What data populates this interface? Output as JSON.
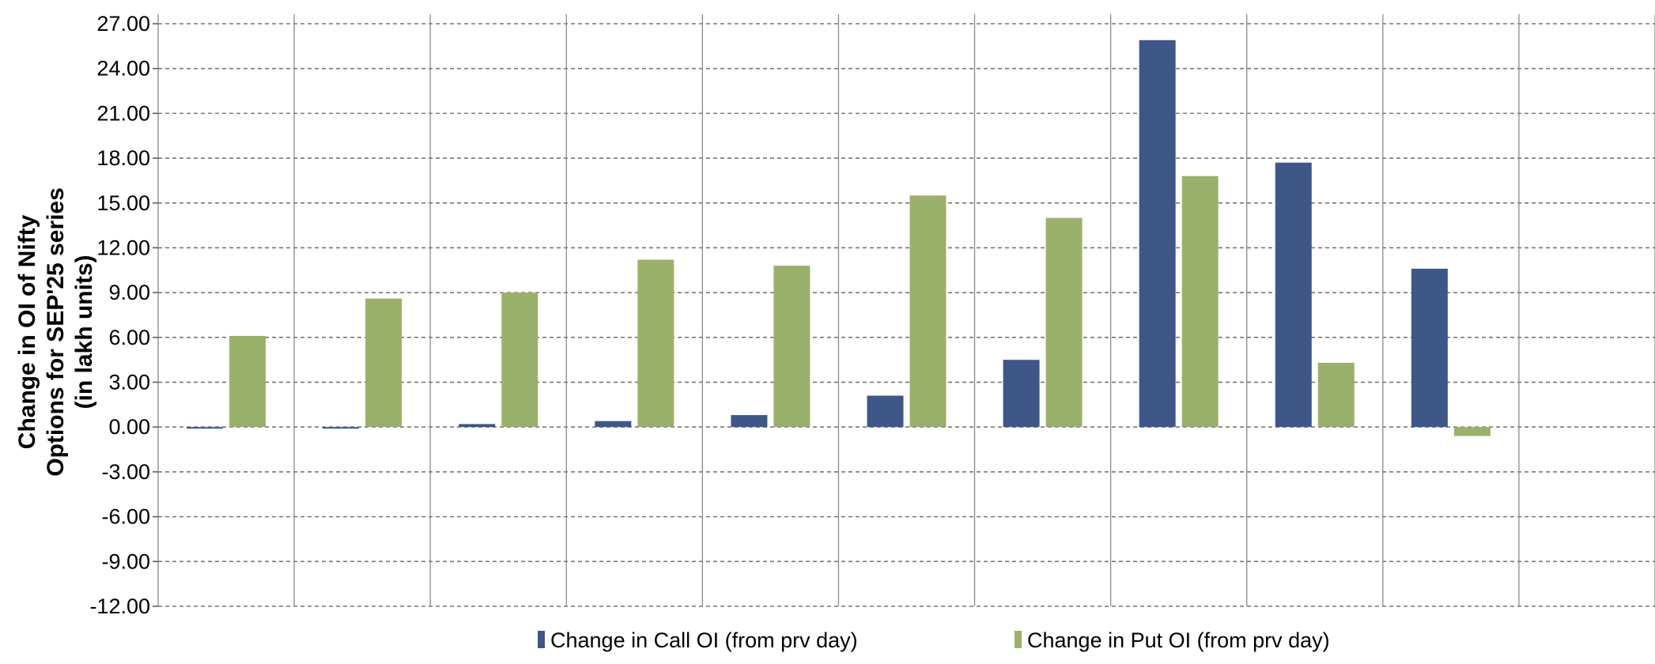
{
  "chart_data": {
    "type": "bar",
    "ylabel_lines": [
      "Change in OI of Nifty",
      "Options for SEP'25 series",
      "(in lakh units)"
    ],
    "xlabel": "",
    "categories": [
      "",
      "",
      "",
      "",
      "",
      "",
      "",
      "",
      "",
      "",
      ""
    ],
    "series": [
      {
        "name": "Change in Call OI (from prv day)",
        "color": "#3f5689",
        "values": [
          -0.1,
          -0.1,
          0.2,
          0.4,
          0.8,
          2.1,
          4.5,
          25.9,
          17.7,
          10.6,
          null
        ]
      },
      {
        "name": "Change in Put OI (from prv day)",
        "color": "#9bb06a",
        "values": [
          6.1,
          8.6,
          9.0,
          11.2,
          10.8,
          15.5,
          14.0,
          16.8,
          4.3,
          -0.6,
          null
        ]
      }
    ],
    "ylim": [
      -12,
      27
    ],
    "yticks": [
      "27.00",
      "24.00",
      "21.00",
      "18.00",
      "15.00",
      "12.00",
      "9.00",
      "6.00",
      "3.00",
      "0.00",
      "-3.00",
      "-6.00",
      "-9.00",
      "-12.00"
    ],
    "ytick_values": [
      27,
      24,
      21,
      18,
      15,
      12,
      9,
      6,
      3,
      0,
      -3,
      -6,
      -9,
      -12
    ],
    "grid": true,
    "legend_position": "bottom-center"
  }
}
